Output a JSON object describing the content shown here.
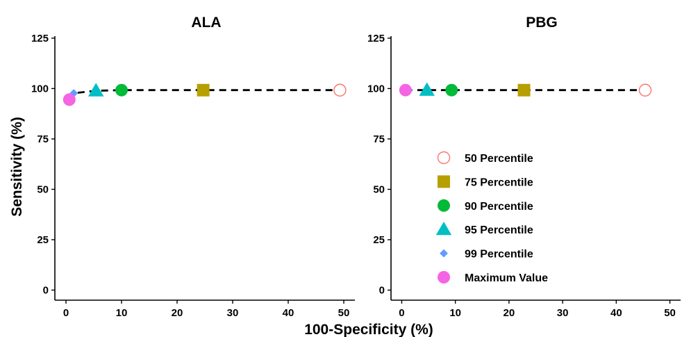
{
  "chart_data": {
    "type": "scatter",
    "shared_xlabel": "100-Specificity (%)",
    "shared_ylabel": "Sensitivity (%)",
    "xlim": [
      -2,
      52
    ],
    "ylim": [
      -5,
      126
    ],
    "xticks": [
      0,
      10,
      20,
      30,
      40,
      50
    ],
    "yticks": [
      0,
      25,
      50,
      75,
      100,
      125
    ],
    "grid": false,
    "legend_position": "inside-bottom-right (PBG panel)",
    "legend": [
      {
        "name": "50 Percentile",
        "shape": "circle-open",
        "color": "#F8766D"
      },
      {
        "name": "75 Percentile",
        "shape": "square",
        "color": "#B79F00"
      },
      {
        "name": "90 Percentile",
        "shape": "circle",
        "color": "#00BA38"
      },
      {
        "name": "95 Percentile",
        "shape": "triangle",
        "color": "#00BFC4"
      },
      {
        "name": "99 Percentile",
        "shape": "diamond",
        "color": "#619CFF"
      },
      {
        "name": "Maximum Value",
        "shape": "circle",
        "color": "#F564E3"
      }
    ],
    "panels": [
      {
        "title": "ALA",
        "line": {
          "style": "dashed",
          "color": "#000000"
        },
        "points": [
          {
            "series": "Maximum Value",
            "x": 0.6,
            "y": 94.5
          },
          {
            "series": "99 Percentile",
            "x": 1.4,
            "y": 97.7
          },
          {
            "series": "95 Percentile",
            "x": 5.4,
            "y": 98.9
          },
          {
            "series": "90 Percentile",
            "x": 10.0,
            "y": 99.2
          },
          {
            "series": "75 Percentile",
            "x": 24.7,
            "y": 99.2
          },
          {
            "series": "50 Percentile",
            "x": 49.3,
            "y": 99.2
          }
        ]
      },
      {
        "title": "PBG",
        "line": {
          "style": "dashed",
          "color": "#000000"
        },
        "points": [
          {
            "series": "Maximum Value",
            "x": 0.7,
            "y": 99.2
          },
          {
            "series": "99 Percentile",
            "x": 1.3,
            "y": 99.2
          },
          {
            "series": "95 Percentile",
            "x": 4.7,
            "y": 99.2
          },
          {
            "series": "90 Percentile",
            "x": 9.3,
            "y": 99.2
          },
          {
            "series": "75 Percentile",
            "x": 22.8,
            "y": 99.2
          },
          {
            "series": "50 Percentile",
            "x": 45.4,
            "y": 99.2
          }
        ]
      }
    ]
  }
}
